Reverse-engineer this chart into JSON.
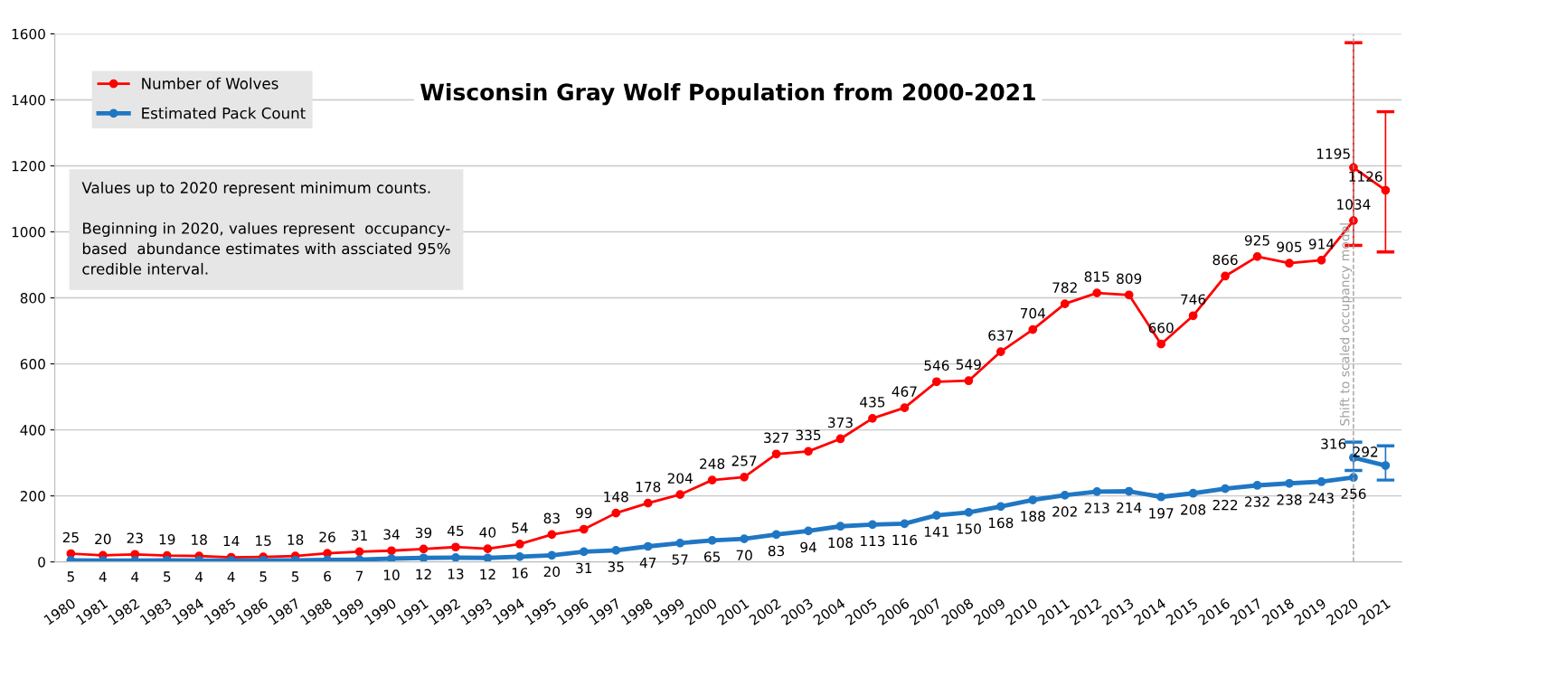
{
  "chart_data": {
    "type": "line",
    "title": "Wisconsin Gray Wolf Population from 2000-2021",
    "categories": [
      "1980",
      "1981",
      "1982",
      "1983",
      "1984",
      "1985",
      "1986",
      "1987",
      "1988",
      "1989",
      "1990",
      "1991",
      "1992",
      "1993",
      "1994",
      "1995",
      "1996",
      "1997",
      "1998",
      "1999",
      "2000",
      "2001",
      "2002",
      "2003",
      "2004",
      "2005",
      "2006",
      "2007",
      "2008",
      "2009",
      "2010",
      "2011",
      "2012",
      "2013",
      "2014",
      "2015",
      "2016",
      "2017",
      "2018",
      "2019",
      "2020",
      "2021"
    ],
    "series": [
      {
        "name": "Number of Wolves",
        "color": "#ff0000",
        "values": [
          25,
          20,
          23,
          19,
          18,
          14,
          15,
          18,
          26,
          31,
          34,
          39,
          45,
          40,
          54,
          83,
          99,
          148,
          178,
          204,
          248,
          257,
          327,
          335,
          373,
          435,
          467,
          546,
          549,
          637,
          704,
          782,
          815,
          809,
          660,
          746,
          866,
          925,
          905,
          914,
          1034,
          null
        ]
      },
      {
        "name": "Estimated Pack Count",
        "color": "#1f77c4",
        "values": [
          5,
          4,
          4,
          5,
          4,
          4,
          5,
          5,
          6,
          7,
          10,
          12,
          13,
          12,
          16,
          20,
          31,
          35,
          47,
          57,
          65,
          70,
          83,
          94,
          108,
          113,
          116,
          141,
          150,
          168,
          188,
          202,
          213,
          214,
          197,
          208,
          222,
          232,
          238,
          243,
          256,
          null
        ]
      },
      {
        "color": "#ff0000",
        "values": [
          null,
          null,
          null,
          null,
          null,
          null,
          null,
          null,
          null,
          null,
          null,
          null,
          null,
          null,
          null,
          null,
          null,
          null,
          null,
          null,
          null,
          null,
          null,
          null,
          null,
          null,
          null,
          null,
          null,
          null,
          null,
          null,
          null,
          null,
          null,
          null,
          null,
          null,
          null,
          null,
          1195,
          1126
        ],
        "errors": [
          null,
          null,
          null,
          null,
          null,
          null,
          null,
          null,
          null,
          null,
          null,
          null,
          null,
          null,
          null,
          null,
          null,
          null,
          null,
          null,
          null,
          null,
          null,
          null,
          null,
          null,
          null,
          null,
          null,
          null,
          null,
          null,
          null,
          null,
          null,
          null,
          null,
          null,
          null,
          null,
          [
            959,
            1573
          ],
          [
            939,
            1364
          ]
        ]
      },
      {
        "color": "#1f77c4",
        "values": [
          null,
          null,
          null,
          null,
          null,
          null,
          null,
          null,
          null,
          null,
          null,
          null,
          null,
          null,
          null,
          null,
          null,
          null,
          null,
          null,
          null,
          null,
          null,
          null,
          null,
          null,
          null,
          null,
          null,
          null,
          null,
          null,
          null,
          null,
          null,
          null,
          null,
          null,
          null,
          null,
          316,
          292
        ],
        "errors": [
          null,
          null,
          null,
          null,
          null,
          null,
          null,
          null,
          null,
          null,
          null,
          null,
          null,
          null,
          null,
          null,
          null,
          null,
          null,
          null,
          null,
          null,
          null,
          null,
          null,
          null,
          null,
          null,
          null,
          null,
          null,
          null,
          null,
          null,
          null,
          null,
          null,
          null,
          null,
          null,
          [
            277,
            363
          ],
          [
            248,
            352
          ]
        ]
      }
    ],
    "ylim": [
      0,
      1600
    ],
    "yticks": [
      0,
      200,
      400,
      600,
      800,
      1000,
      1200,
      1400,
      1600
    ],
    "grid": "y",
    "legend": "top left",
    "marker": "circle",
    "line_style": "solid",
    "data_labels": true,
    "ref_lines": [
      {
        "axis": "x",
        "value": "2020",
        "label": "Shift to scaled occupancy model",
        "color": "#a0a0a0",
        "line_style": "dashed"
      }
    ],
    "annotations": [
      "Values up to 2020 represent minimum counts.\n\nBeginning in 2020, values represent  occupancy-\nbased  abundance estimates with assciated 95%\ncredible interval."
    ]
  }
}
